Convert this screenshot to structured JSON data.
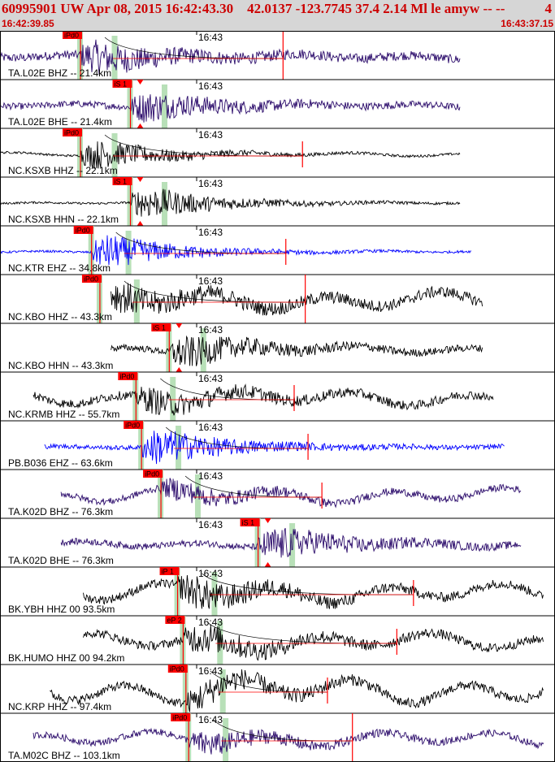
{
  "header": {
    "title": "60995901 UW Apr 08, 2015 16:42:43.30    42.0137 -123.7745 37.4 2.14 Ml le amyw -- --",
    "count": "4",
    "start_time": "16:42:39.85",
    "end_time": "16:43:37.15"
  },
  "colors": {
    "header_bg": "#d6d6d6",
    "accent": "#cc0000",
    "pick": "#ff0000",
    "window": "#b8e0b8",
    "trace_black": "#000000",
    "trace_purple": "#2a0a6a",
    "trace_blue": "#0000ff"
  },
  "traces": [
    {
      "label": "TA.L02E BHZ -- 21.4km",
      "pick": "iPd0",
      "minute": "16:43",
      "color": "purple",
      "pick_frac": 0.145,
      "window_frac": 0.175,
      "start_frac": 0.0,
      "end_frac": 0.83,
      "energy": 0.75,
      "noise": 0.2,
      "low": 0.15,
      "red_frac": 0.51,
      "red_tall": true,
      "curve": true
    },
    {
      "label": "TA.L02E BHE -- 21.4km",
      "pick": "iS 1",
      "minute": "16:43",
      "color": "purple",
      "pick_frac": 0.235,
      "window_frac": 0.265,
      "start_frac": 0.0,
      "end_frac": 0.83,
      "energy": 0.75,
      "noise": 0.15,
      "low": 0.1,
      "red_frac": null,
      "red_tall": false,
      "curve": false
    },
    {
      "label": "NC.KSXB HHZ -- 22.1km",
      "pick": "iPd0",
      "minute": "16:43",
      "color": "black",
      "pick_frac": 0.145,
      "window_frac": 0.175,
      "start_frac": 0.0,
      "end_frac": 0.83,
      "energy": 0.8,
      "noise": 0.05,
      "low": 0.1,
      "red_frac": 0.545,
      "red_tall": false,
      "curve": true
    },
    {
      "label": "NC.KSXB HHN -- 22.1km",
      "pick": "iS 1",
      "minute": "16:43",
      "color": "black",
      "pick_frac": 0.235,
      "window_frac": 0.265,
      "start_frac": 0.0,
      "end_frac": 0.83,
      "energy": 0.9,
      "noise": 0.05,
      "low": 0.05,
      "red_frac": null,
      "red_tall": false,
      "curve": false
    },
    {
      "label": "NC.KTR EHZ -- 34.8km",
      "pick": "iPd0",
      "minute": "16:43",
      "color": "blue",
      "pick_frac": 0.165,
      "window_frac": 0.2,
      "start_frac": 0.0,
      "end_frac": 0.85,
      "energy": 0.95,
      "noise": 0.05,
      "low": 0.05,
      "red_frac": 0.515,
      "red_tall": false,
      "curve": true
    },
    {
      "label": "NC.KBO HHZ -- 43.3km",
      "pick": "iPd0",
      "minute": "16:43",
      "color": "black",
      "pick_frac": 0.18,
      "window_frac": 0.215,
      "start_frac": 0.2,
      "end_frac": 0.87,
      "energy": 0.7,
      "noise": 0.25,
      "low": 0.45,
      "red_frac": 0.55,
      "red_tall": true,
      "curve": true
    },
    {
      "label": "NC.KBO HHN -- 43.3km",
      "pick": "iS 1",
      "minute": "16:43",
      "color": "black",
      "pick_frac": 0.305,
      "window_frac": 0.335,
      "start_frac": 0.2,
      "end_frac": 0.87,
      "energy": 0.8,
      "noise": 0.15,
      "low": 0.2,
      "red_frac": null,
      "red_tall": false,
      "curve": false
    },
    {
      "label": "NC.KRMB HHZ -- 55.7km",
      "pick": "iPd0",
      "minute": "16:43",
      "color": "black",
      "pick_frac": 0.245,
      "window_frac": 0.28,
      "start_frac": 0.06,
      "end_frac": 0.89,
      "energy": 0.55,
      "noise": 0.2,
      "low": 0.4,
      "red_frac": 0.53,
      "red_tall": false,
      "curve": true
    },
    {
      "label": "PB.B036 EHZ -- 63.6km",
      "pick": "iPd0",
      "minute": "16:43",
      "color": "blue",
      "pick_frac": 0.255,
      "window_frac": 0.29,
      "start_frac": 0.08,
      "end_frac": 0.91,
      "energy": 0.95,
      "noise": 0.1,
      "low": 0.05,
      "red_frac": 0.555,
      "red_tall": false,
      "curve": true
    },
    {
      "label": "TA.K02D BHZ -- 76.3km",
      "pick": "iPd0",
      "minute": "16:43",
      "color": "purple",
      "pick_frac": 0.29,
      "window_frac": 0.325,
      "start_frac": 0.11,
      "end_frac": 0.94,
      "energy": 0.5,
      "noise": 0.15,
      "low": 0.4,
      "red_frac": 0.58,
      "red_tall": false,
      "curve": true
    },
    {
      "label": "TA.K02D BHE -- 76.3km",
      "pick": "iS 1",
      "minute": "16:43",
      "color": "purple",
      "pick_frac": 0.465,
      "window_frac": 0.495,
      "start_frac": 0.11,
      "end_frac": 0.94,
      "energy": 0.85,
      "noise": 0.15,
      "low": 0.15,
      "red_frac": null,
      "red_tall": false,
      "curve": false
    },
    {
      "label": "BK.YBH HHZ 00 93.5km",
      "pick": "iP 1",
      "minute": "16:43",
      "color": "black",
      "pick_frac": 0.32,
      "window_frac": 0.355,
      "start_frac": 0.15,
      "end_frac": 0.98,
      "energy": 0.75,
      "noise": 0.2,
      "low": 0.5,
      "red_frac": 0.745,
      "red_tall": false,
      "curve": true
    },
    {
      "label": "BK.HUMO HHZ 00 94.2km",
      "pick": "eP 2",
      "minute": "16:43",
      "color": "black",
      "pick_frac": 0.33,
      "window_frac": 0.365,
      "start_frac": 0.15,
      "end_frac": 0.98,
      "energy": 0.7,
      "noise": 0.2,
      "low": 0.45,
      "red_frac": 0.715,
      "red_tall": false,
      "curve": true
    },
    {
      "label": "NC.KRP HHZ -- 97.4km",
      "pick": "iPd0",
      "minute": "16:43",
      "color": "black",
      "pick_frac": 0.335,
      "window_frac": 0.37,
      "start_frac": 0.09,
      "end_frac": 0.98,
      "energy": 0.6,
      "noise": 0.2,
      "low": 0.7,
      "red_frac": 0.59,
      "red_tall": false,
      "curve": true
    },
    {
      "label": "TA.M02C BHZ -- 103.1km",
      "pick": "iPd0",
      "minute": "16:43",
      "color": "purple",
      "pick_frac": 0.34,
      "window_frac": 0.375,
      "start_frac": 0.06,
      "end_frac": 0.98,
      "energy": 0.55,
      "noise": 0.15,
      "low": 0.4,
      "red_frac": 0.635,
      "red_tall": true,
      "curve": true
    }
  ]
}
